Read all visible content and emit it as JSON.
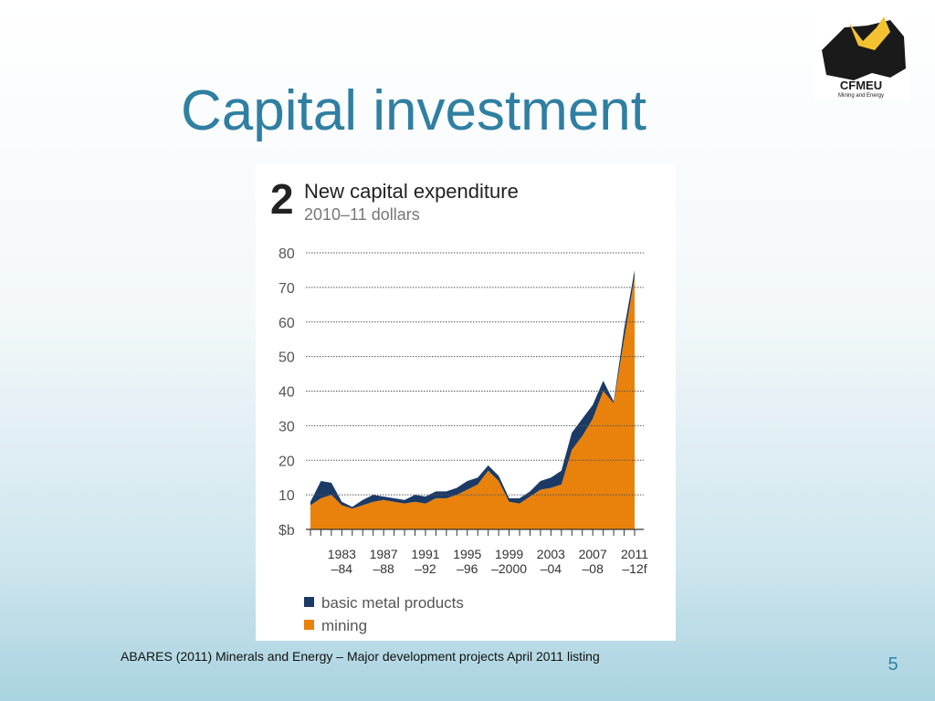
{
  "slide_title": "Capital investment",
  "logo": {
    "name": "CFMEU",
    "tagline": "Mining and Energy"
  },
  "footer": "ABARES (2011) Minerals and Energy – Major development projects April 2011 listing",
  "page_number": "5",
  "chart_data": {
    "type": "stacked-area",
    "number": "2",
    "title": "New capital expenditure",
    "subtitle": "2010–11 dollars",
    "categories": [
      null,
      null,
      null,
      [
        "1983",
        "–84"
      ],
      null,
      null,
      null,
      [
        "1987",
        "–88"
      ],
      null,
      null,
      null,
      [
        "1991",
        "–92"
      ],
      null,
      null,
      null,
      [
        "1995",
        "–96"
      ],
      null,
      null,
      null,
      [
        "1999",
        "–2000"
      ],
      null,
      null,
      null,
      [
        "2003",
        "–04"
      ],
      null,
      null,
      null,
      [
        "2007",
        "–08"
      ],
      null,
      null,
      null,
      [
        "2011",
        "–12f"
      ]
    ],
    "series": [
      {
        "name": "mining",
        "color": "#e8820c",
        "values": [
          7,
          9,
          10,
          7,
          6,
          7,
          8,
          8.5,
          8,
          7.5,
          8,
          7.5,
          9,
          9,
          10,
          11.5,
          13,
          17,
          14,
          8,
          7.5,
          9.5,
          11.5,
          12,
          13,
          23,
          27,
          32,
          40,
          36.5,
          55,
          73
        ]
      },
      {
        "name": "basic metal products",
        "color": "#1b3a66",
        "values": [
          1,
          5,
          3.5,
          1,
          0.5,
          1.5,
          2,
          1,
          1,
          1,
          2,
          2,
          2,
          2,
          2,
          2.5,
          2,
          1.5,
          1.5,
          1,
          1.5,
          1.5,
          2.5,
          3,
          4,
          5,
          5,
          4,
          3,
          0.5,
          3,
          2
        ]
      }
    ],
    "ylim": [
      0,
      80
    ],
    "yticks": [
      {
        "value": 0,
        "label": "$b"
      },
      10,
      20,
      30,
      40,
      50,
      60,
      70,
      80
    ],
    "grid": true
  }
}
